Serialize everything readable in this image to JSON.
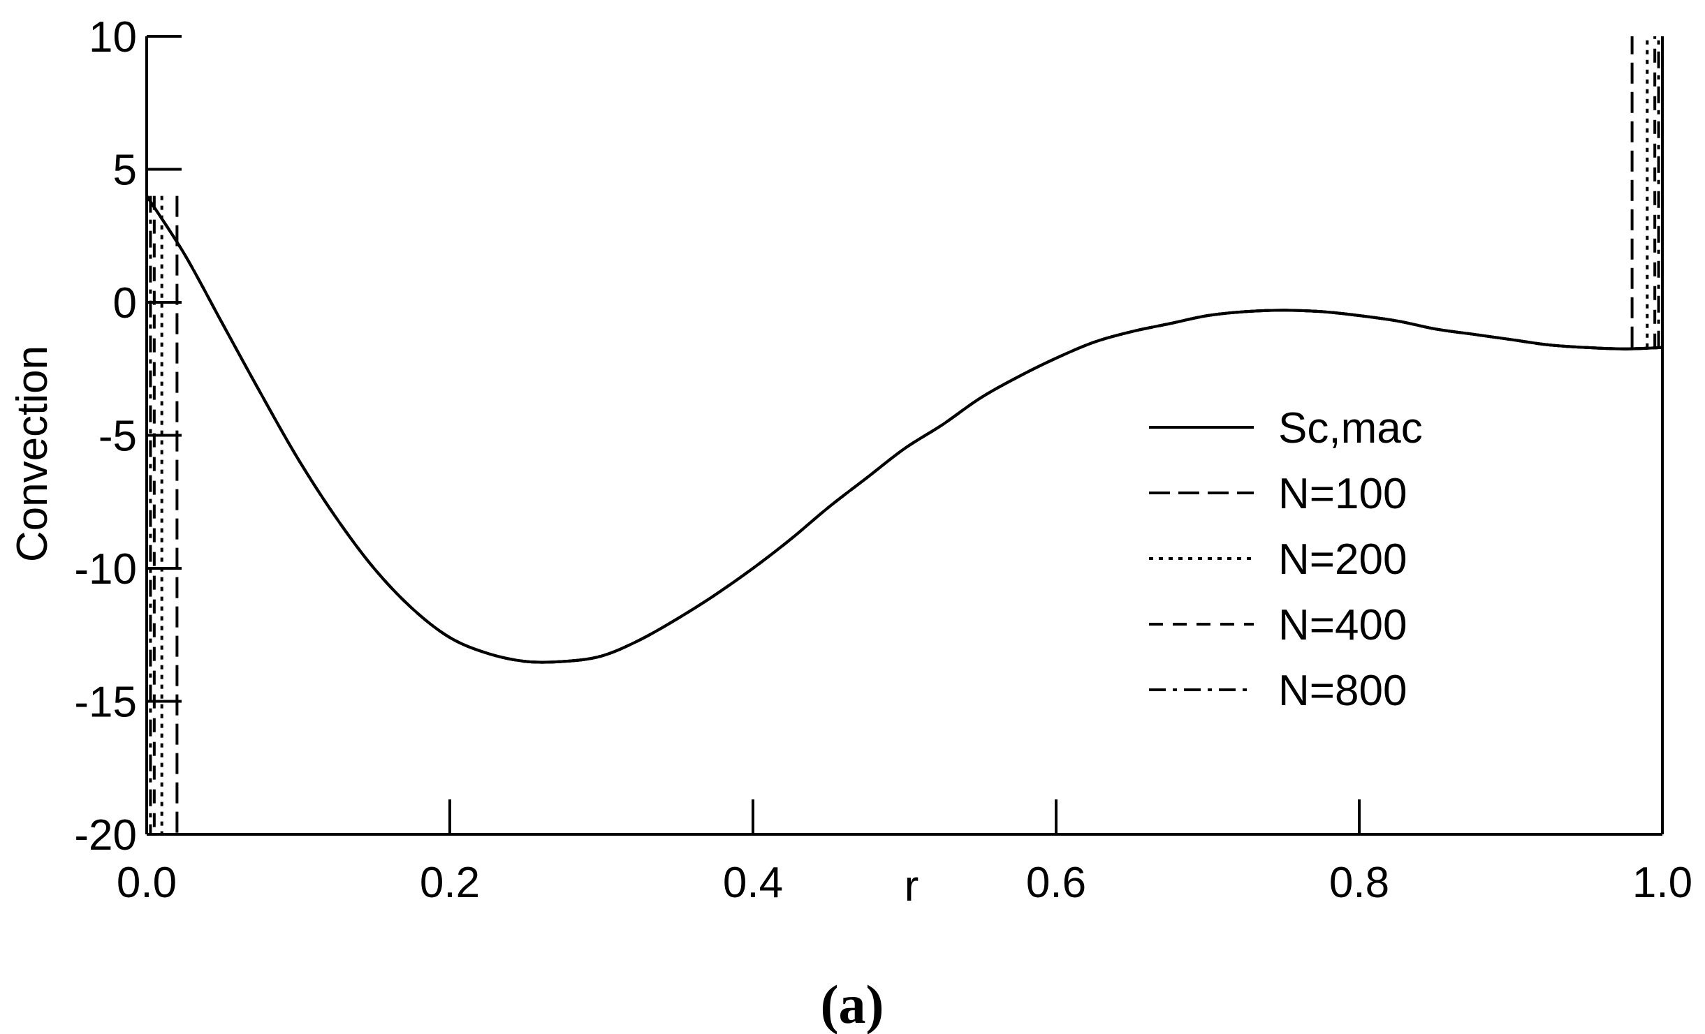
{
  "chart_data": {
    "type": "line",
    "title": "",
    "xlabel": "r",
    "ylabel": "Convection",
    "panel_label": "(a)",
    "xlim": [
      0.0,
      1.0
    ],
    "ylim": [
      -20,
      10
    ],
    "xticks": [
      0.0,
      0.2,
      0.4,
      0.6,
      0.8,
      1.0
    ],
    "xtick_labels": [
      "0.0",
      "0.2",
      "0.4",
      "0.6",
      "0.8",
      "1.0"
    ],
    "yticks": [
      10,
      5,
      0,
      -5,
      -10,
      -15,
      -20
    ],
    "ytick_labels": [
      "10",
      "5",
      "0",
      "-5",
      "-10",
      "-15",
      "-20"
    ],
    "grid": false,
    "legend_position": "center-right",
    "line_color": "#000000",
    "curve": {
      "x": [
        0.0,
        0.025,
        0.05,
        0.075,
        0.1,
        0.125,
        0.15,
        0.175,
        0.2,
        0.225,
        0.25,
        0.275,
        0.3,
        0.325,
        0.35,
        0.375,
        0.4,
        0.425,
        0.45,
        0.475,
        0.5,
        0.525,
        0.55,
        0.575,
        0.6,
        0.625,
        0.65,
        0.675,
        0.7,
        0.725,
        0.75,
        0.775,
        0.8,
        0.825,
        0.85,
        0.875,
        0.9,
        0.925,
        0.95,
        0.975,
        1.0
      ],
      "y": [
        4.0,
        1.8,
        -0.8,
        -3.4,
        -5.9,
        -8.1,
        -10.0,
        -11.5,
        -12.6,
        -13.2,
        -13.5,
        -13.5,
        -13.3,
        -12.7,
        -11.9,
        -11.0,
        -10.0,
        -8.9,
        -7.7,
        -6.6,
        -5.5,
        -4.6,
        -3.6,
        -2.8,
        -2.1,
        -1.5,
        -1.1,
        -0.8,
        -0.5,
        -0.35,
        -0.3,
        -0.35,
        -0.5,
        -0.7,
        -1.0,
        -1.2,
        -1.4,
        -1.6,
        -1.7,
        -1.75,
        -1.7
      ]
    },
    "series": [
      {
        "name": "Sc,mac",
        "dash": "solid",
        "boundary_r": [
          0.0,
          1.0
        ]
      },
      {
        "name": "N=100",
        "dash": "long-dash",
        "boundary_r": [
          0.02,
          0.98
        ]
      },
      {
        "name": "N=200",
        "dash": "dotted",
        "boundary_r": [
          0.01,
          0.99
        ]
      },
      {
        "name": "N=400",
        "dash": "dashed",
        "boundary_r": [
          0.005,
          0.995
        ]
      },
      {
        "name": "N=800",
        "dash": "dash-dot",
        "boundary_r": [
          0.0025,
          0.9975
        ]
      }
    ]
  }
}
